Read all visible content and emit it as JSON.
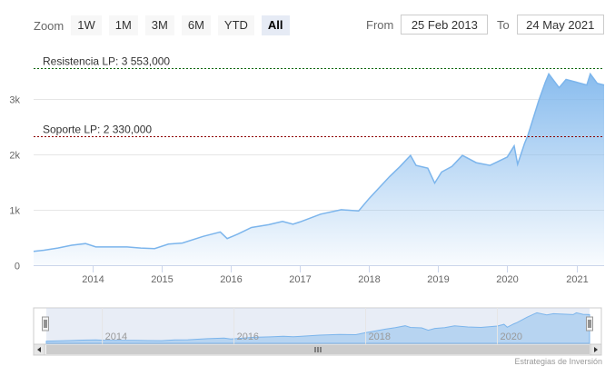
{
  "zoom": {
    "label": "Zoom",
    "buttons": [
      "1W",
      "1M",
      "3M",
      "6M",
      "YTD",
      "All"
    ],
    "active": "All"
  },
  "range": {
    "from_label": "From",
    "from_value": "25 Feb 2013",
    "to_label": "To",
    "to_value": "24 May 2021"
  },
  "chart_data": {
    "type": "area",
    "title": "",
    "xlabel": "",
    "ylabel": "",
    "ylim": [
      0,
      3800
    ],
    "y_ticks": [
      {
        "value": 0,
        "label": "0"
      },
      {
        "value": 1000,
        "label": "1k"
      },
      {
        "value": 2000,
        "label": "2k"
      },
      {
        "value": 3000,
        "label": "3k"
      }
    ],
    "x_ticks": [
      "2014",
      "2015",
      "2016",
      "2017",
      "2018",
      "2019",
      "2020",
      "2021"
    ],
    "grid": true,
    "series": [
      {
        "color": "#7cb5ec",
        "x": [
          2013.15,
          2013.3,
          2013.5,
          2013.7,
          2013.9,
          2014.05,
          2014.3,
          2014.5,
          2014.7,
          2014.9,
          2015.1,
          2015.3,
          2015.6,
          2015.85,
          2015.95,
          2016.1,
          2016.3,
          2016.55,
          2016.75,
          2016.9,
          2017.0,
          2017.3,
          2017.6,
          2017.85,
          2018.0,
          2018.15,
          2018.3,
          2018.45,
          2018.6,
          2018.68,
          2018.85,
          2018.95,
          2019.05,
          2019.2,
          2019.35,
          2019.55,
          2019.75,
          2020.0,
          2020.1,
          2020.15,
          2020.25,
          2020.3,
          2020.45,
          2020.55,
          2020.6,
          2020.75,
          2020.85,
          2021.0,
          2021.15,
          2021.2,
          2021.3,
          2021.4
        ],
        "values": [
          250,
          270,
          310,
          360,
          390,
          330,
          330,
          330,
          310,
          300,
          380,
          400,
          520,
          600,
          480,
          560,
          680,
          730,
          790,
          740,
          780,
          920,
          1000,
          980,
          1200,
          1400,
          1600,
          1780,
          1980,
          1800,
          1750,
          1480,
          1680,
          1780,
          1980,
          1850,
          1800,
          1950,
          2150,
          1820,
          2200,
          2350,
          2950,
          3300,
          3450,
          3200,
          3350,
          3300,
          3250,
          3450,
          3280,
          3250
        ]
      }
    ],
    "plot_lines": [
      {
        "label": "Resistencia LP: 3 553,000",
        "value": 3553,
        "color": "#006400"
      },
      {
        "label": "Soporte LP: 2 330,000",
        "value": 2330,
        "color": "#8b0000"
      }
    ]
  },
  "navigator": {
    "labels": [
      "2014",
      "2016",
      "2018",
      "2020"
    ]
  },
  "credits": "Estrategias de Inversión"
}
